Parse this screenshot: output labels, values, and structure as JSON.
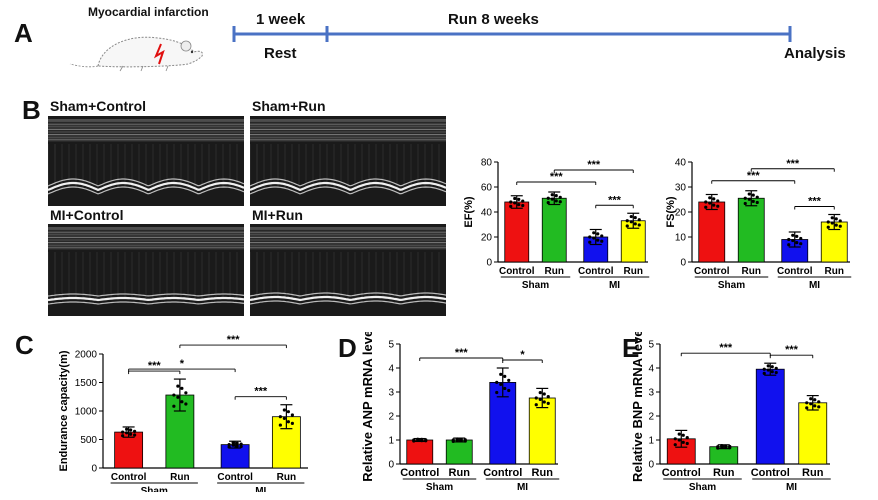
{
  "panels": {
    "a": "A",
    "b": "B",
    "c": "C",
    "d": "D",
    "e": "E"
  },
  "timeline": {
    "mi_label": "Myocardial infarction",
    "week1": "1 week",
    "run": "Run 8 weeks",
    "rest": "Rest",
    "analysis": "Analysis"
  },
  "echo": {
    "sham_control": "Sham+Control",
    "sham_run": "Sham+Run",
    "mi_control": "MI+Control",
    "mi_run": "MI+Run"
  },
  "colors": {
    "sham_control": "#ee1111",
    "sham_run": "#22bb22",
    "mi_control": "#1111ee",
    "mi_run": "#ffff00",
    "timeline": "#4a72c4"
  },
  "chart_data": [
    {
      "id": "ef",
      "type": "bar",
      "ylabel": "EF(%)",
      "ylim": [
        0,
        80
      ],
      "yticks": [
        0,
        20,
        40,
        60,
        80
      ],
      "categories": [
        "Control",
        "Run",
        "Control",
        "Run"
      ],
      "groups": [
        "Sham",
        "MI"
      ],
      "values": [
        48,
        51,
        20,
        33
      ],
      "errors": [
        5,
        5,
        6,
        6
      ],
      "significance": [
        {
          "from": 0,
          "to": 2,
          "label": "***"
        },
        {
          "from": 1,
          "to": 3,
          "label": "***"
        },
        {
          "from": 2,
          "to": 3,
          "label": "***"
        }
      ]
    },
    {
      "id": "fs",
      "type": "bar",
      "ylabel": "FS(%)",
      "ylim": [
        0,
        40
      ],
      "yticks": [
        0,
        10,
        20,
        30,
        40
      ],
      "categories": [
        "Control",
        "Run",
        "Control",
        "Run"
      ],
      "groups": [
        "Sham",
        "MI"
      ],
      "values": [
        24,
        25.5,
        9,
        16
      ],
      "errors": [
        3,
        3,
        3,
        3
      ],
      "significance": [
        {
          "from": 0,
          "to": 2,
          "label": "***"
        },
        {
          "from": 1,
          "to": 3,
          "label": "***"
        },
        {
          "from": 2,
          "to": 3,
          "label": "***"
        }
      ]
    },
    {
      "id": "endurance",
      "type": "bar",
      "ylabel": "Endurance capacity(m)",
      "ylim": [
        0,
        2000
      ],
      "yticks": [
        0,
        500,
        1000,
        1500,
        2000
      ],
      "categories": [
        "Control",
        "Run",
        "Control",
        "Run"
      ],
      "groups": [
        "Sham",
        "MI"
      ],
      "values": [
        630,
        1280,
        410,
        900
      ],
      "errors": [
        90,
        280,
        60,
        210
      ],
      "significance": [
        {
          "from": 0,
          "to": 2,
          "label": "*"
        },
        {
          "from": 0,
          "to": 1,
          "label": "***"
        },
        {
          "from": 1,
          "to": 3,
          "label": "***"
        },
        {
          "from": 2,
          "to": 3,
          "label": "***"
        }
      ]
    },
    {
      "id": "anp",
      "type": "bar",
      "ylabel": "Relative ANP mRNA level",
      "ylim": [
        0,
        5
      ],
      "yticks": [
        0,
        1,
        2,
        3,
        4,
        5
      ],
      "categories": [
        "Control",
        "Run",
        "Control",
        "Run"
      ],
      "groups": [
        "Sham",
        "MI"
      ],
      "values": [
        1.0,
        1.0,
        3.4,
        2.75
      ],
      "errors": [
        0.06,
        0.08,
        0.6,
        0.4
      ],
      "significance": [
        {
          "from": 0,
          "to": 2,
          "label": "***"
        },
        {
          "from": 2,
          "to": 3,
          "label": "*"
        }
      ]
    },
    {
      "id": "bnp",
      "type": "bar",
      "ylabel": "Relative BNP mRNA level",
      "ylim": [
        0,
        5
      ],
      "yticks": [
        0,
        1,
        2,
        3,
        4,
        5
      ],
      "categories": [
        "Control",
        "Run",
        "Control",
        "Run"
      ],
      "groups": [
        "Sham",
        "MI"
      ],
      "values": [
        1.05,
        0.72,
        3.95,
        2.55
      ],
      "errors": [
        0.35,
        0.08,
        0.25,
        0.3
      ],
      "significance": [
        {
          "from": 0,
          "to": 2,
          "label": "***"
        },
        {
          "from": 2,
          "to": 3,
          "label": "***"
        }
      ]
    }
  ]
}
